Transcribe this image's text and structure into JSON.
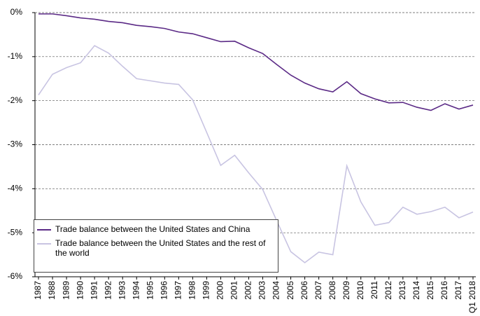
{
  "chart_data": {
    "type": "line",
    "categories": [
      "1987",
      "1988",
      "1989",
      "1990",
      "1991",
      "1992",
      "1993",
      "1994",
      "1995",
      "1996",
      "1997",
      "1998",
      "1999",
      "2000",
      "2001",
      "2002",
      "2003",
      "2004",
      "2005",
      "2006",
      "2007",
      "2008",
      "2009",
      "2010",
      "2011",
      "2012",
      "2013",
      "2014",
      "2015",
      "2016",
      "2017",
      "Q1 2018"
    ],
    "series": [
      {
        "name": "Trade balance between the United States and China",
        "color": "#5b2a86",
        "values": [
          -0.03,
          -0.03,
          -0.07,
          -0.12,
          -0.15,
          -0.2,
          -0.23,
          -0.29,
          -0.32,
          -0.36,
          -0.44,
          -0.48,
          -0.57,
          -0.66,
          -0.65,
          -0.8,
          -0.93,
          -1.18,
          -1.42,
          -1.6,
          -1.73,
          -1.8,
          -1.57,
          -1.84,
          -1.96,
          -2.05,
          -2.04,
          -2.15,
          -2.22,
          -2.07,
          -2.19,
          -2.1
        ]
      },
      {
        "name": "Trade balance between the United States and the rest of the world",
        "color": "#c8c4e2",
        "values": [
          -1.87,
          -1.4,
          -1.25,
          -1.14,
          -0.75,
          -0.92,
          -1.22,
          -1.5,
          -1.55,
          -1.6,
          -1.63,
          -1.98,
          -2.72,
          -3.47,
          -3.24,
          -3.64,
          -4.02,
          -4.73,
          -5.43,
          -5.68,
          -5.44,
          -5.5,
          -3.48,
          -4.3,
          -4.83,
          -4.77,
          -4.42,
          -4.58,
          -4.52,
          -4.42,
          -4.66,
          -4.53
        ]
      }
    ],
    "ylim": [
      -6,
      0
    ],
    "yticks": [
      {
        "value": 0,
        "label": "0%"
      },
      {
        "value": -1,
        "label": "-1%"
      },
      {
        "value": -2,
        "label": "-2%"
      },
      {
        "value": -3,
        "label": "-3%"
      },
      {
        "value": -4,
        "label": "-4%"
      },
      {
        "value": -5,
        "label": "-5%"
      },
      {
        "value": -6,
        "label": "-6%"
      }
    ],
    "grid": true,
    "legend": "lower left"
  }
}
